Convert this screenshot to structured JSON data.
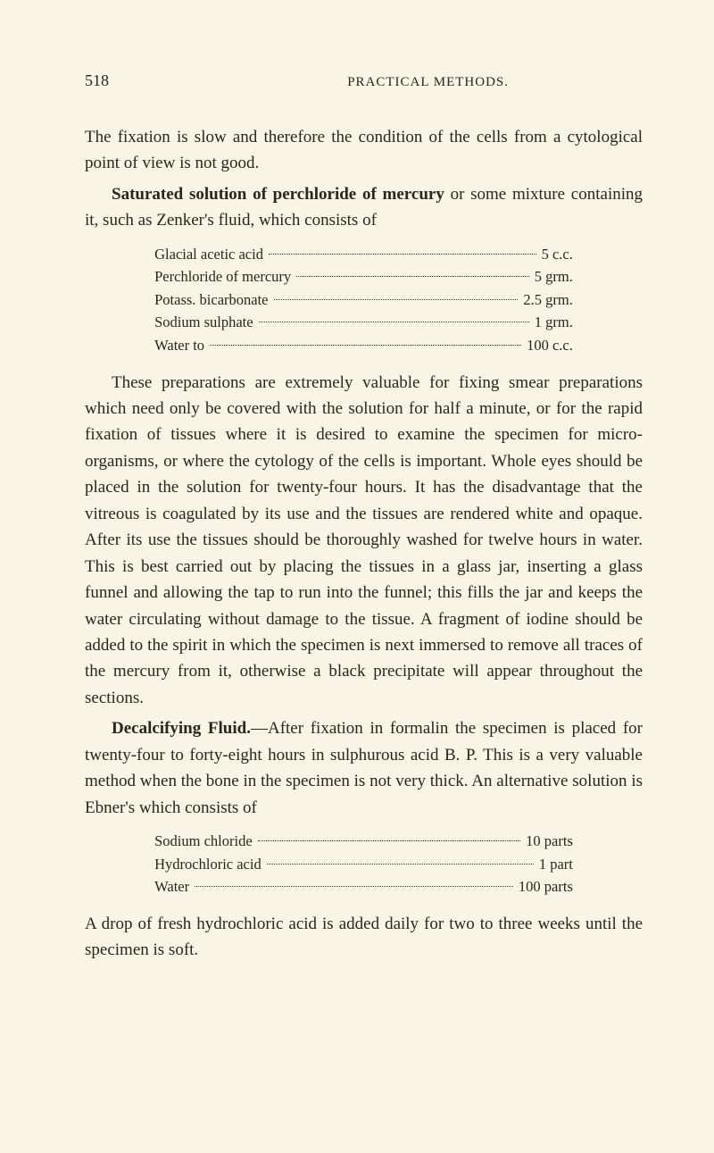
{
  "page_number": "518",
  "running_head": "PRACTICAL METHODS.",
  "para1": "The fixation is slow and therefore the condition of the cells from a cytological point of view is not good.",
  "para2_lead_bold": "Saturated solution of perchloride of mercury",
  "para2_rest": " or some mixture containing it, such as Zenker's fluid, which consists of",
  "table1": [
    {
      "label": "Glacial acetic acid",
      "value": "5 c.c."
    },
    {
      "label": "Perchloride of mercury",
      "value": "5 grm."
    },
    {
      "label": "Potass. bicarbonate",
      "value": "2.5 grm."
    },
    {
      "label": "Sodium sulphate",
      "value": "1 grm."
    },
    {
      "label": "Water to",
      "value": "100 c.c."
    }
  ],
  "para3": "These preparations are extremely valuable for fixing smear preparations which need only be covered with the solution for half a minute, or for the rapid fixation of tissues where it is desired to examine the specimen for micro-organisms, or where the cytology of the cells is important. Whole eyes should be placed in the solution for twenty-four hours. It has the disadvantage that the vitreous is coagulated by its use and the tissues are rendered white and opaque. After its use the tissues should be thoroughly washed for twelve hours in water. This is best carried out by placing the tissues in a glass jar, inserting a glass funnel and allowing the tap to run into the funnel; this fills the jar and keeps the water circulating without damage to the tissue. A fragment of iodine should be added to the spirit in which the specimen is next immersed to remove all traces of the mercury from it, otherwise a black precipitate will appear throughout the sections.",
  "para4_lead_bold": "Decalcifying Fluid.",
  "para4_rest": "—After fixation in formalin the specimen is placed for twenty-four to forty-eight hours in sulphurous acid B. P. This is a very valuable method when the bone in the specimen is not very thick. An alternative solution is Ebner's which consists of",
  "table2": [
    {
      "label": "Sodium chloride",
      "value": "10 parts"
    },
    {
      "label": "Hydrochloric acid",
      "value": "1 part"
    },
    {
      "label": "Water",
      "value": "100 parts"
    }
  ],
  "para5": "A drop of fresh hydrochloric acid is added daily for two to three weeks until the specimen is soft.",
  "colors": {
    "background": "#f9f5e4",
    "text": "#28261e"
  },
  "typography": {
    "body_fontsize": 19,
    "table_fontsize": 16.5,
    "header_fontsize": 15,
    "line_height": 1.55
  }
}
